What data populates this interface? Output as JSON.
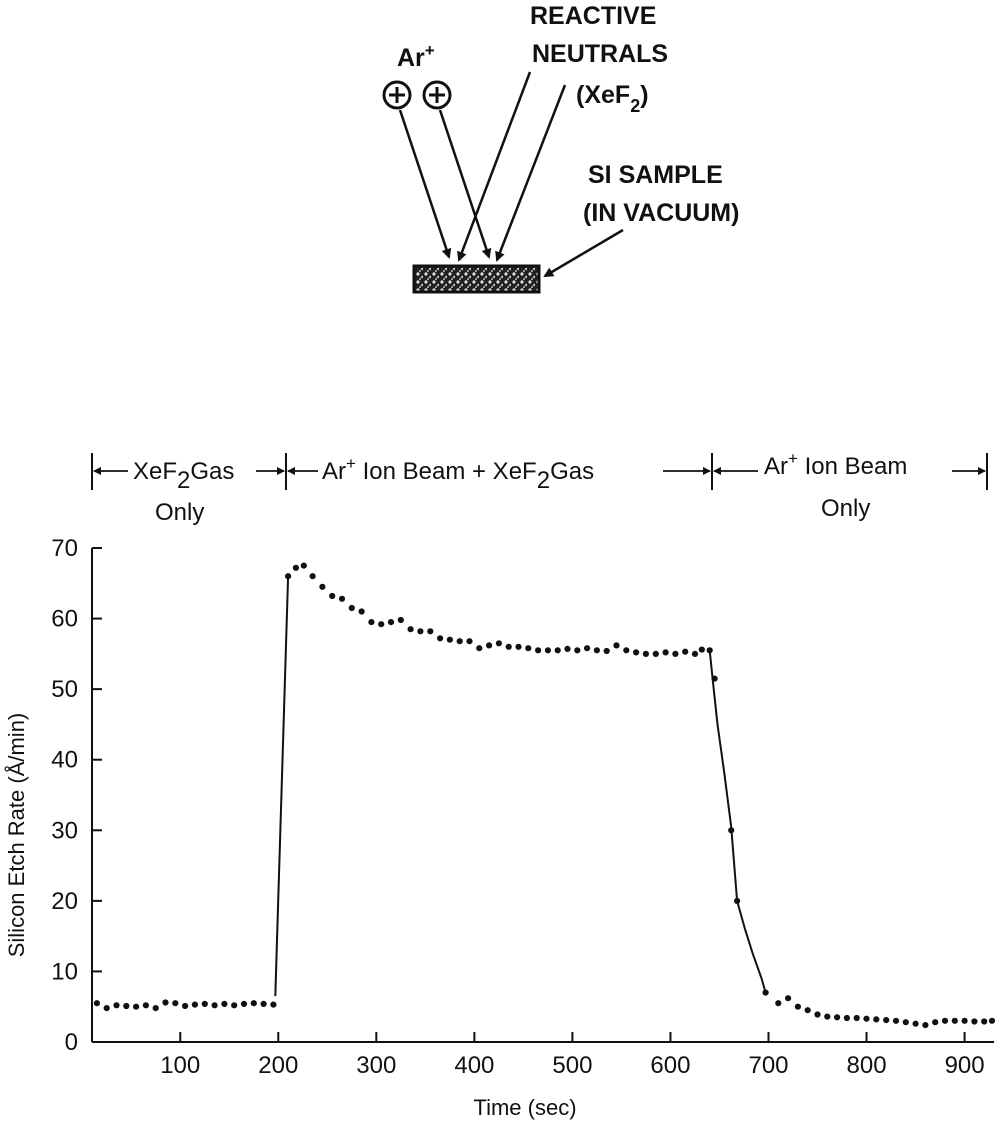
{
  "diagram": {
    "ion_label": "Ar",
    "ion_label_sup": "+",
    "neutrals_label_line1": "REACTIVE",
    "neutrals_label_line2": "NEUTRALS",
    "neutrals_label_line3": "(XeF",
    "neutrals_label_line3_sub": "2",
    "neutrals_label_line3_end": ")",
    "sample_label_line1": "SI SAMPLE",
    "sample_label_line2": "(IN VACUUM)"
  },
  "regions": {
    "r1_line1_pre": "XeF",
    "r1_line1_sub": "2",
    "r1_line1_post": "Gas",
    "r1_line2": "Only",
    "r2_pre": "Ar",
    "r2_sup": "+",
    "r2_mid": " Ion Beam + XeF",
    "r2_sub": "2",
    "r2_post": "Gas",
    "r3_pre": "Ar",
    "r3_sup": "+",
    "r3_post": " Ion Beam",
    "r3_line2": "Only"
  },
  "chart_data": {
    "type": "scatter",
    "xlabel": "Time (sec)",
    "ylabel": "Silicon Etch Rate (Å/min)",
    "xlim": [
      10,
      930
    ],
    "ylim": [
      0,
      70
    ],
    "xticks": [
      100,
      200,
      300,
      400,
      500,
      600,
      700,
      800,
      900
    ],
    "yticks": [
      0,
      10,
      20,
      30,
      40,
      50,
      60,
      70
    ],
    "connected_segments": [
      [
        [
          197,
          6.5
        ],
        [
          210,
          66.0
        ]
      ],
      [
        [
          640,
          55.5
        ],
        [
          643,
          51.5
        ],
        [
          648,
          45.0
        ],
        [
          655,
          38.0
        ],
        [
          662,
          30.5
        ],
        [
          668,
          20.0
        ],
        [
          676,
          16.0
        ],
        [
          684,
          12.5
        ],
        [
          693,
          9.0
        ],
        [
          697,
          7.0
        ]
      ]
    ],
    "points": [
      [
        15,
        5.5
      ],
      [
        25,
        4.8
      ],
      [
        35,
        5.2
      ],
      [
        45,
        5.1
      ],
      [
        55,
        5.0
      ],
      [
        65,
        5.2
      ],
      [
        75,
        4.8
      ],
      [
        85,
        5.6
      ],
      [
        95,
        5.5
      ],
      [
        105,
        5.1
      ],
      [
        115,
        5.3
      ],
      [
        125,
        5.4
      ],
      [
        135,
        5.2
      ],
      [
        145,
        5.4
      ],
      [
        155,
        5.2
      ],
      [
        165,
        5.4
      ],
      [
        175,
        5.5
      ],
      [
        185,
        5.4
      ],
      [
        195,
        5.3
      ],
      [
        210,
        66.0
      ],
      [
        218,
        67.2
      ],
      [
        226,
        67.5
      ],
      [
        235,
        66.0
      ],
      [
        245,
        64.5
      ],
      [
        255,
        63.2
      ],
      [
        265,
        62.8
      ],
      [
        275,
        61.5
      ],
      [
        285,
        61.0
      ],
      [
        295,
        59.5
      ],
      [
        305,
        59.2
      ],
      [
        315,
        59.5
      ],
      [
        325,
        59.8
      ],
      [
        335,
        58.5
      ],
      [
        345,
        58.2
      ],
      [
        355,
        58.2
      ],
      [
        365,
        57.2
      ],
      [
        375,
        57.0
      ],
      [
        385,
        56.8
      ],
      [
        395,
        56.8
      ],
      [
        405,
        55.8
      ],
      [
        415,
        56.2
      ],
      [
        425,
        56.5
      ],
      [
        435,
        56.0
      ],
      [
        445,
        56.0
      ],
      [
        455,
        55.8
      ],
      [
        465,
        55.5
      ],
      [
        475,
        55.5
      ],
      [
        485,
        55.5
      ],
      [
        495,
        55.7
      ],
      [
        505,
        55.5
      ],
      [
        515,
        55.8
      ],
      [
        525,
        55.5
      ],
      [
        535,
        55.4
      ],
      [
        545,
        56.2
      ],
      [
        555,
        55.5
      ],
      [
        565,
        55.2
      ],
      [
        575,
        55.0
      ],
      [
        585,
        55.0
      ],
      [
        595,
        55.2
      ],
      [
        605,
        55.0
      ],
      [
        615,
        55.3
      ],
      [
        625,
        55.0
      ],
      [
        632,
        55.6
      ],
      [
        640,
        55.5
      ],
      [
        645,
        51.5
      ],
      [
        662,
        30.0
      ],
      [
        668,
        20.0
      ],
      [
        697,
        7.0
      ],
      [
        710,
        5.5
      ],
      [
        720,
        6.2
      ],
      [
        730,
        5.0
      ],
      [
        740,
        4.5
      ],
      [
        750,
        3.9
      ],
      [
        760,
        3.6
      ],
      [
        770,
        3.5
      ],
      [
        780,
        3.4
      ],
      [
        790,
        3.4
      ],
      [
        800,
        3.3
      ],
      [
        810,
        3.2
      ],
      [
        820,
        3.1
      ],
      [
        830,
        3.0
      ],
      [
        840,
        2.8
      ],
      [
        850,
        2.6
      ],
      [
        860,
        2.4
      ],
      [
        870,
        2.8
      ],
      [
        880,
        3.0
      ],
      [
        890,
        3.0
      ],
      [
        900,
        3.0
      ],
      [
        910,
        2.9
      ],
      [
        920,
        2.9
      ],
      [
        928,
        3.0
      ]
    ]
  }
}
